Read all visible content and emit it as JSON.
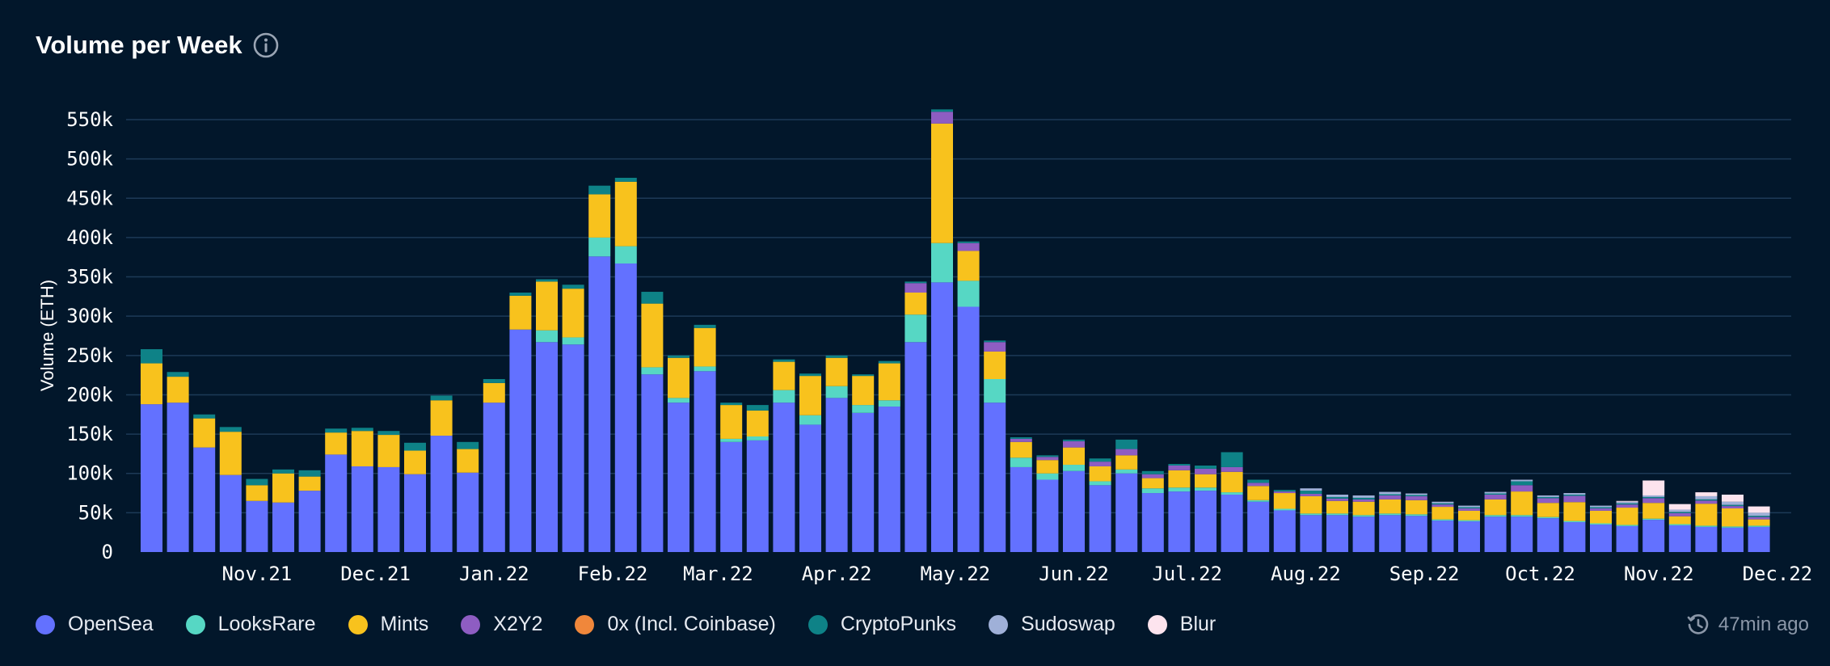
{
  "title": "Volume per Week",
  "updated_text": "47min ago",
  "icons": {
    "info": "info-circle-icon",
    "clock": "history-clock-icon"
  },
  "chart_data": {
    "type": "bar",
    "stacked": true,
    "ylabel": "Volume (ETH)",
    "ylim": [
      0,
      560000
    ],
    "yticks": [
      0,
      50000,
      100000,
      150000,
      200000,
      250000,
      300000,
      350000,
      400000,
      450000,
      500000,
      550000
    ],
    "ytick_labels": [
      "0",
      "50k",
      "100k",
      "150k",
      "200k",
      "250k",
      "300k",
      "350k",
      "400k",
      "450k",
      "500k",
      "550k"
    ],
    "grid": true,
    "legend_position": "bottom-left",
    "xtick_labels": [
      {
        "label": "Nov.21",
        "index": 4
      },
      {
        "label": "Dec.21",
        "index": 8.5
      },
      {
        "label": "Jan.22",
        "index": 13
      },
      {
        "label": "Feb.22",
        "index": 17.5
      },
      {
        "label": "Mar.22",
        "index": 21.5
      },
      {
        "label": "Apr.22",
        "index": 26
      },
      {
        "label": "May.22",
        "index": 30.5
      },
      {
        "label": "Jun.22",
        "index": 35
      },
      {
        "label": "Jul.22",
        "index": 39.3
      },
      {
        "label": "Aug.22",
        "index": 43.8
      },
      {
        "label": "Sep.22",
        "index": 48.3
      },
      {
        "label": "Oct.22",
        "index": 52.7
      },
      {
        "label": "Nov.22",
        "index": 57.2
      },
      {
        "label": "Dec.22",
        "index": 61.7
      }
    ],
    "series": [
      {
        "name": "OpenSea",
        "color": "#6371ff",
        "values": [
          188000,
          190000,
          133000,
          98000,
          65000,
          63000,
          78000,
          124000,
          109000,
          108000,
          99000,
          148000,
          101000,
          190000,
          283000,
          267000,
          264000,
          376000,
          367000,
          226000,
          190000,
          230000,
          140000,
          142000,
          190000,
          162000,
          196000,
          177000,
          185000,
          267000,
          343000,
          312000,
          190000,
          108000,
          92000,
          103000,
          85000,
          100000,
          75000,
          77000,
          78000,
          73000,
          64000,
          53000,
          47000,
          47000,
          45000,
          47000,
          46000,
          40000,
          39000,
          45000,
          45000,
          43000,
          38000,
          35000,
          33000,
          41000,
          34000,
          32000,
          31000,
          32000
        ]
      },
      {
        "name": "LooksRare",
        "color": "#56d7c4",
        "values": [
          0,
          0,
          0,
          0,
          0,
          0,
          0,
          0,
          0,
          0,
          0,
          0,
          0,
          0,
          0,
          15000,
          9000,
          24000,
          22000,
          9000,
          6000,
          6000,
          4000,
          5000,
          16000,
          12000,
          15000,
          10000,
          8000,
          35000,
          50000,
          33000,
          30000,
          12000,
          8000,
          8000,
          5000,
          5000,
          6000,
          5000,
          4000,
          3000,
          2000,
          2000,
          2000,
          2000,
          2000,
          2000,
          2000,
          1500,
          1500,
          2000,
          2000,
          1500,
          1500,
          1500,
          1500,
          1500,
          1500,
          1500,
          1500,
          1500
        ]
      },
      {
        "name": "Mints",
        "color": "#f8c21d",
        "values": [
          52000,
          33000,
          37000,
          55000,
          20000,
          37000,
          18000,
          28000,
          45000,
          41000,
          30000,
          45000,
          30000,
          25000,
          43000,
          62000,
          62000,
          55000,
          82000,
          81000,
          51000,
          49000,
          43000,
          33000,
          36000,
          50000,
          36000,
          37000,
          47000,
          28000,
          152000,
          38000,
          35000,
          20000,
          17000,
          22000,
          19000,
          18000,
          13000,
          22000,
          17000,
          26000,
          18000,
          20000,
          22000,
          16000,
          17000,
          18000,
          18000,
          16000,
          12000,
          20000,
          30000,
          18000,
          24000,
          16000,
          22000,
          20000,
          10000,
          28000,
          23000,
          8000
        ]
      },
      {
        "name": "X2Y2",
        "color": "#8e5dc2",
        "values": [
          0,
          0,
          0,
          0,
          0,
          0,
          0,
          0,
          0,
          0,
          0,
          0,
          0,
          0,
          0,
          0,
          0,
          0,
          0,
          0,
          0,
          0,
          0,
          0,
          0,
          0,
          0,
          0,
          0,
          12000,
          15000,
          10000,
          12000,
          4000,
          4000,
          8000,
          6000,
          8000,
          5000,
          6000,
          7000,
          6000,
          4000,
          2000,
          3000,
          3000,
          3000,
          5000,
          5000,
          3000,
          3000,
          6000,
          8000,
          6000,
          8000,
          3000,
          4000,
          6000,
          4000,
          4000,
          3000,
          3000
        ]
      },
      {
        "name": "0x (Incl. Coinbase)",
        "color": "#f0873b",
        "values": [
          0,
          0,
          0,
          0,
          0,
          0,
          0,
          0,
          0,
          0,
          0,
          0,
          0,
          0,
          0,
          0,
          0,
          0,
          0,
          0,
          0,
          0,
          0,
          0,
          0,
          0,
          0,
          0,
          0,
          0,
          0,
          0,
          0,
          0,
          0,
          0,
          0,
          0,
          0,
          0,
          0,
          0,
          0,
          0,
          0,
          0,
          0,
          0,
          0,
          0,
          0,
          0,
          0,
          0,
          0,
          0,
          0,
          0,
          0,
          0,
          0,
          0
        ]
      },
      {
        "name": "CryptoPunks",
        "color": "#0e8287",
        "values": [
          18000,
          6000,
          5000,
          6000,
          8000,
          5000,
          8000,
          5000,
          4000,
          5000,
          10000,
          6000,
          9000,
          5000,
          4000,
          3000,
          5000,
          11000,
          5000,
          15000,
          3000,
          4000,
          3000,
          7000,
          3000,
          3000,
          3000,
          2000,
          3000,
          2000,
          3000,
          2000,
          2000,
          2000,
          2000,
          2000,
          4000,
          12000,
          4000,
          2000,
          4000,
          19000,
          4000,
          2000,
          4000,
          2000,
          2000,
          1500,
          1500,
          1500,
          1500,
          1500,
          5000,
          1500,
          1500,
          1500,
          1500,
          1500,
          1500,
          1500,
          1500,
          1500
        ]
      },
      {
        "name": "Sudoswap",
        "color": "#9fb0d8",
        "values": [
          0,
          0,
          0,
          0,
          0,
          0,
          0,
          0,
          0,
          0,
          0,
          0,
          0,
          0,
          0,
          0,
          0,
          0,
          0,
          0,
          0,
          0,
          0,
          0,
          0,
          0,
          0,
          0,
          0,
          0,
          0,
          0,
          0,
          0,
          0,
          0,
          0,
          0,
          0,
          0,
          0,
          0,
          0,
          0,
          3000,
          3000,
          3000,
          3000,
          2000,
          2000,
          2000,
          2000,
          2000,
          2000,
          2000,
          2000,
          2000,
          2000,
          3000,
          4000,
          4000,
          4000
        ]
      },
      {
        "name": "Blur",
        "color": "#fde4ee",
        "values": [
          0,
          0,
          0,
          0,
          0,
          0,
          0,
          0,
          0,
          0,
          0,
          0,
          0,
          0,
          0,
          0,
          0,
          0,
          0,
          0,
          0,
          0,
          0,
          0,
          0,
          0,
          0,
          0,
          0,
          0,
          0,
          0,
          0,
          0,
          0,
          0,
          0,
          0,
          0,
          0,
          0,
          0,
          0,
          0,
          0,
          0,
          0,
          0,
          0,
          0,
          0,
          0,
          0,
          0,
          0,
          0,
          1000,
          19000,
          7000,
          5000,
          9000,
          8000
        ]
      }
    ]
  }
}
